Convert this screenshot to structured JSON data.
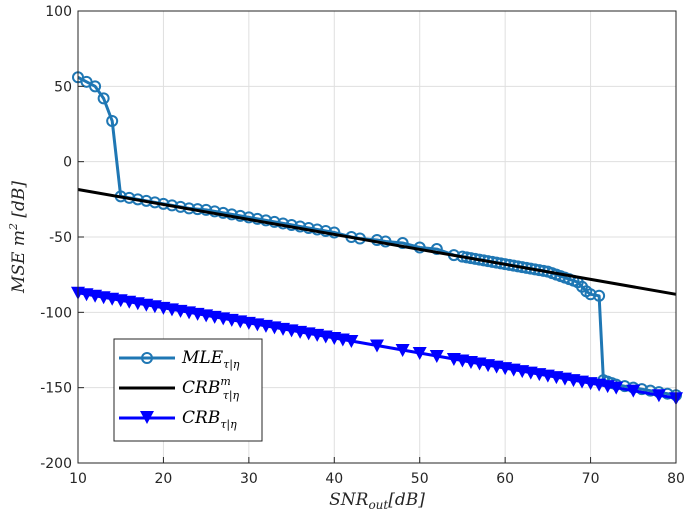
{
  "chart_data": {
    "type": "line",
    "title": "",
    "xlabel": "SNR_out[dB]",
    "ylabel": "MSE m^2 [dB]",
    "xlim": [
      10,
      80
    ],
    "ylim": [
      -200,
      100
    ],
    "xticks": [
      10,
      20,
      30,
      40,
      50,
      60,
      70,
      80
    ],
    "yticks": [
      100,
      50,
      0,
      -50,
      -100,
      -150,
      -200
    ],
    "grid": true,
    "legend_position": "bottom-left",
    "series": [
      {
        "name": "MLE_τ|η",
        "color": "#1f77b4",
        "marker": "circle",
        "x": [
          10,
          11,
          12,
          13,
          14,
          15,
          16,
          17,
          18,
          19,
          20,
          21,
          22,
          23,
          24,
          25,
          26,
          27,
          28,
          29,
          30,
          31,
          32,
          33,
          34,
          35,
          36,
          37,
          38,
          39,
          40,
          42,
          43,
          45,
          46,
          48,
          50,
          52,
          54,
          55,
          55.5,
          56,
          56.5,
          57,
          57.5,
          58,
          58.5,
          59,
          59.5,
          60,
          60.5,
          61,
          61.5,
          62,
          62.5,
          63,
          63.5,
          64,
          64.5,
          65,
          65.5,
          66,
          66.5,
          67,
          67.5,
          68,
          68.5,
          69,
          69.5,
          70,
          71,
          71.5,
          72,
          72.5,
          73,
          74,
          75,
          76,
          77,
          78,
          79,
          80
        ],
        "values": [
          56,
          53,
          50,
          42,
          27,
          -23,
          -24,
          -25,
          -26,
          -27,
          -28,
          -29,
          -30,
          -31,
          -31.5,
          -32,
          -33,
          -34,
          -35,
          -36,
          -37,
          -38,
          -39,
          -40,
          -41,
          -42,
          -43,
          -44,
          -45,
          -46,
          -47,
          -50,
          -51,
          -52,
          -53,
          -54,
          -57,
          -58,
          -62,
          -63,
          -63.5,
          -64,
          -64.5,
          -65,
          -65.5,
          -66,
          -66.5,
          -67,
          -67.5,
          -68,
          -68.5,
          -69,
          -69.5,
          -70,
          -70.5,
          -71,
          -71.5,
          -72,
          -72.5,
          -73,
          -74,
          -75,
          -76,
          -77,
          -78,
          -79,
          -80,
          -83,
          -86,
          -88,
          -89,
          -145,
          -146,
          -147,
          -148,
          -149,
          -150,
          -151,
          -152,
          -153,
          -154,
          -155
        ]
      },
      {
        "name": "CRB^m_τ|η",
        "color": "#000000",
        "marker": "none",
        "x": [
          10,
          80
        ],
        "values": [
          -18.5,
          -88
        ]
      },
      {
        "name": "CRB_τ|η",
        "color": "#0000ff",
        "marker": "triangle-down",
        "x": [
          10,
          11,
          12,
          13,
          14,
          15,
          16,
          17,
          18,
          19,
          20,
          21,
          22,
          23,
          24,
          25,
          26,
          27,
          28,
          29,
          30,
          31,
          32,
          33,
          34,
          35,
          36,
          37,
          38,
          39,
          40,
          41,
          42,
          45,
          48,
          50,
          52,
          54,
          55,
          56,
          57,
          58,
          59,
          60,
          61,
          62,
          63,
          64,
          65,
          66,
          67,
          68,
          69,
          70,
          71,
          72,
          73,
          75,
          78,
          80
        ],
        "values": [
          -87,
          -88,
          -89,
          -90,
          -91,
          -92,
          -93,
          -94,
          -95,
          -96,
          -97,
          -98,
          -99,
          -100,
          -101,
          -102,
          -103,
          -104,
          -105,
          -106,
          -107,
          -108,
          -109,
          -110,
          -111,
          -112,
          -113,
          -114,
          -115,
          -116,
          -117,
          -118,
          -119,
          -122,
          -125,
          -127,
          -129,
          -131,
          -132,
          -133,
          -134,
          -135,
          -136,
          -137,
          -138,
          -139,
          -140,
          -141,
          -142,
          -143,
          -144,
          -145,
          -146,
          -147,
          -148,
          -149,
          -150,
          -152,
          -155,
          -157
        ]
      }
    ]
  },
  "legend": {
    "entries": [
      {
        "base": "MLE",
        "sub": "τ|η",
        "sup": ""
      },
      {
        "base": "CRB",
        "sub": "τ|η",
        "sup": "m"
      },
      {
        "base": "CRB",
        "sub": "τ|η",
        "sup": ""
      }
    ]
  },
  "axis_text": {
    "xlabel_base": "SNR",
    "xlabel_sub": "out",
    "xlabel_rest": "[dB]",
    "ylabel_base": "MSE m",
    "ylabel_sup": "2",
    "ylabel_rest": " [dB]"
  }
}
